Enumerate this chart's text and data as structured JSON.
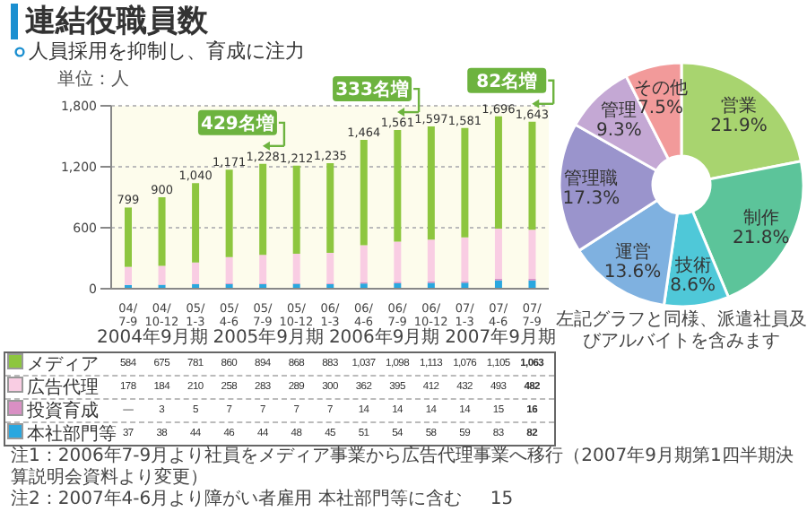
{
  "chart_data": [
    {
      "type": "bar",
      "title": "連結役職員数",
      "subtitle": "人員採用を抑制し、育成に注力",
      "ylabel": "単位：人",
      "stacked": true,
      "categories": [
        "04/7-9",
        "04/10-12",
        "05/1-3",
        "05/4-6",
        "05/7-9",
        "05/10-12",
        "06/1-3",
        "06/4-6",
        "06/7-9",
        "06/10-12",
        "07/1-3",
        "07/4-6",
        "07/7-9"
      ],
      "series": [
        {
          "name": "本社部門等",
          "color": "#2aa7df",
          "values": [
            37,
            38,
            44,
            46,
            44,
            48,
            45,
            51,
            54,
            58,
            59,
            83,
            82
          ],
          "value_labels": [
            "37",
            "38",
            "44",
            "46",
            "44",
            "48",
            "45",
            "51",
            "54",
            "58",
            "59",
            "83",
            "82"
          ]
        },
        {
          "name": "投資育成",
          "color": "#d98fc4",
          "values": [
            null,
            3,
            5,
            7,
            7,
            7,
            7,
            14,
            14,
            14,
            14,
            15,
            16
          ],
          "value_labels": [
            "—",
            "3",
            "5",
            "7",
            "7",
            "7",
            "7",
            "14",
            "14",
            "14",
            "14",
            "15",
            "16"
          ]
        },
        {
          "name": "広告代理",
          "color": "#f9cde3",
          "values": [
            178,
            184,
            210,
            258,
            283,
            289,
            300,
            362,
            395,
            412,
            432,
            493,
            482
          ],
          "value_labels": [
            "178",
            "184",
            "210",
            "258",
            "283",
            "289",
            "300",
            "362",
            "395",
            "412",
            "432",
            "493",
            "482"
          ]
        },
        {
          "name": "メディア",
          "color": "#8dc63f",
          "values": [
            584,
            675,
            781,
            860,
            894,
            868,
            883,
            1037,
            1098,
            1113,
            1076,
            1105,
            1063
          ],
          "value_labels": [
            "584",
            "675",
            "781",
            "860",
            "894",
            "868",
            "883",
            "1,037",
            "1,098",
            "1,113",
            "1,076",
            "1,105",
            "1,063"
          ]
        }
      ],
      "totals": [
        "799",
        "900",
        "1,040",
        "1,171",
        "1,228",
        "1,212",
        "1,235",
        "1,464",
        "1,561",
        "1,597",
        "1,581",
        "1,696",
        "1,643"
      ],
      "ylim": [
        0,
        1800
      ],
      "yticks": [
        0,
        600,
        {
          "value": 1200,
          "label": "1,200"
        },
        {
          "value": 1800,
          "label": "1,800"
        }
      ],
      "grid": "y",
      "legend": "bottom",
      "annotations": [
        {
          "text": "429名増",
          "x": "05/7-9",
          "y": 1228
        },
        {
          "text": "333名増",
          "x": "06/7-9",
          "y": 1561
        },
        {
          "text": "82名増",
          "x": "07/7-9",
          "y": 1643
        },
        "2004年9月期",
        "2005年9月期",
        "2006年9月期",
        "2007年9月期",
        "注1：2006年7-9月より社員をメディア事業から広告代理事業へ移行（2007年9月期第1四半期決算説明会資料より変更）",
        "注2：2007年4-6月より障がい者雇用 本社部門等に含む",
        "15"
      ]
    },
    {
      "type": "donut",
      "categories": [
        "営業",
        "制作",
        "技術",
        "運営",
        "管理職",
        "管理",
        "その他"
      ],
      "values": [
        21.9,
        21.8,
        8.6,
        13.6,
        17.3,
        9.3,
        7.5
      ],
      "value_labels": [
        "21.9%",
        "21.8%",
        "8.6%",
        "13.6%",
        "17.3%",
        "9.3%",
        "7.5%"
      ],
      "colors": [
        "#a8d46f",
        "#5cc49a",
        "#4fc8d8",
        "#7fb1e0",
        "#9a94cc",
        "#c4a8d4",
        "#f29a9a"
      ],
      "annotations": [
        "左記グラフと同様、派遣社員及びアルバイトを含みます"
      ]
    }
  ]
}
